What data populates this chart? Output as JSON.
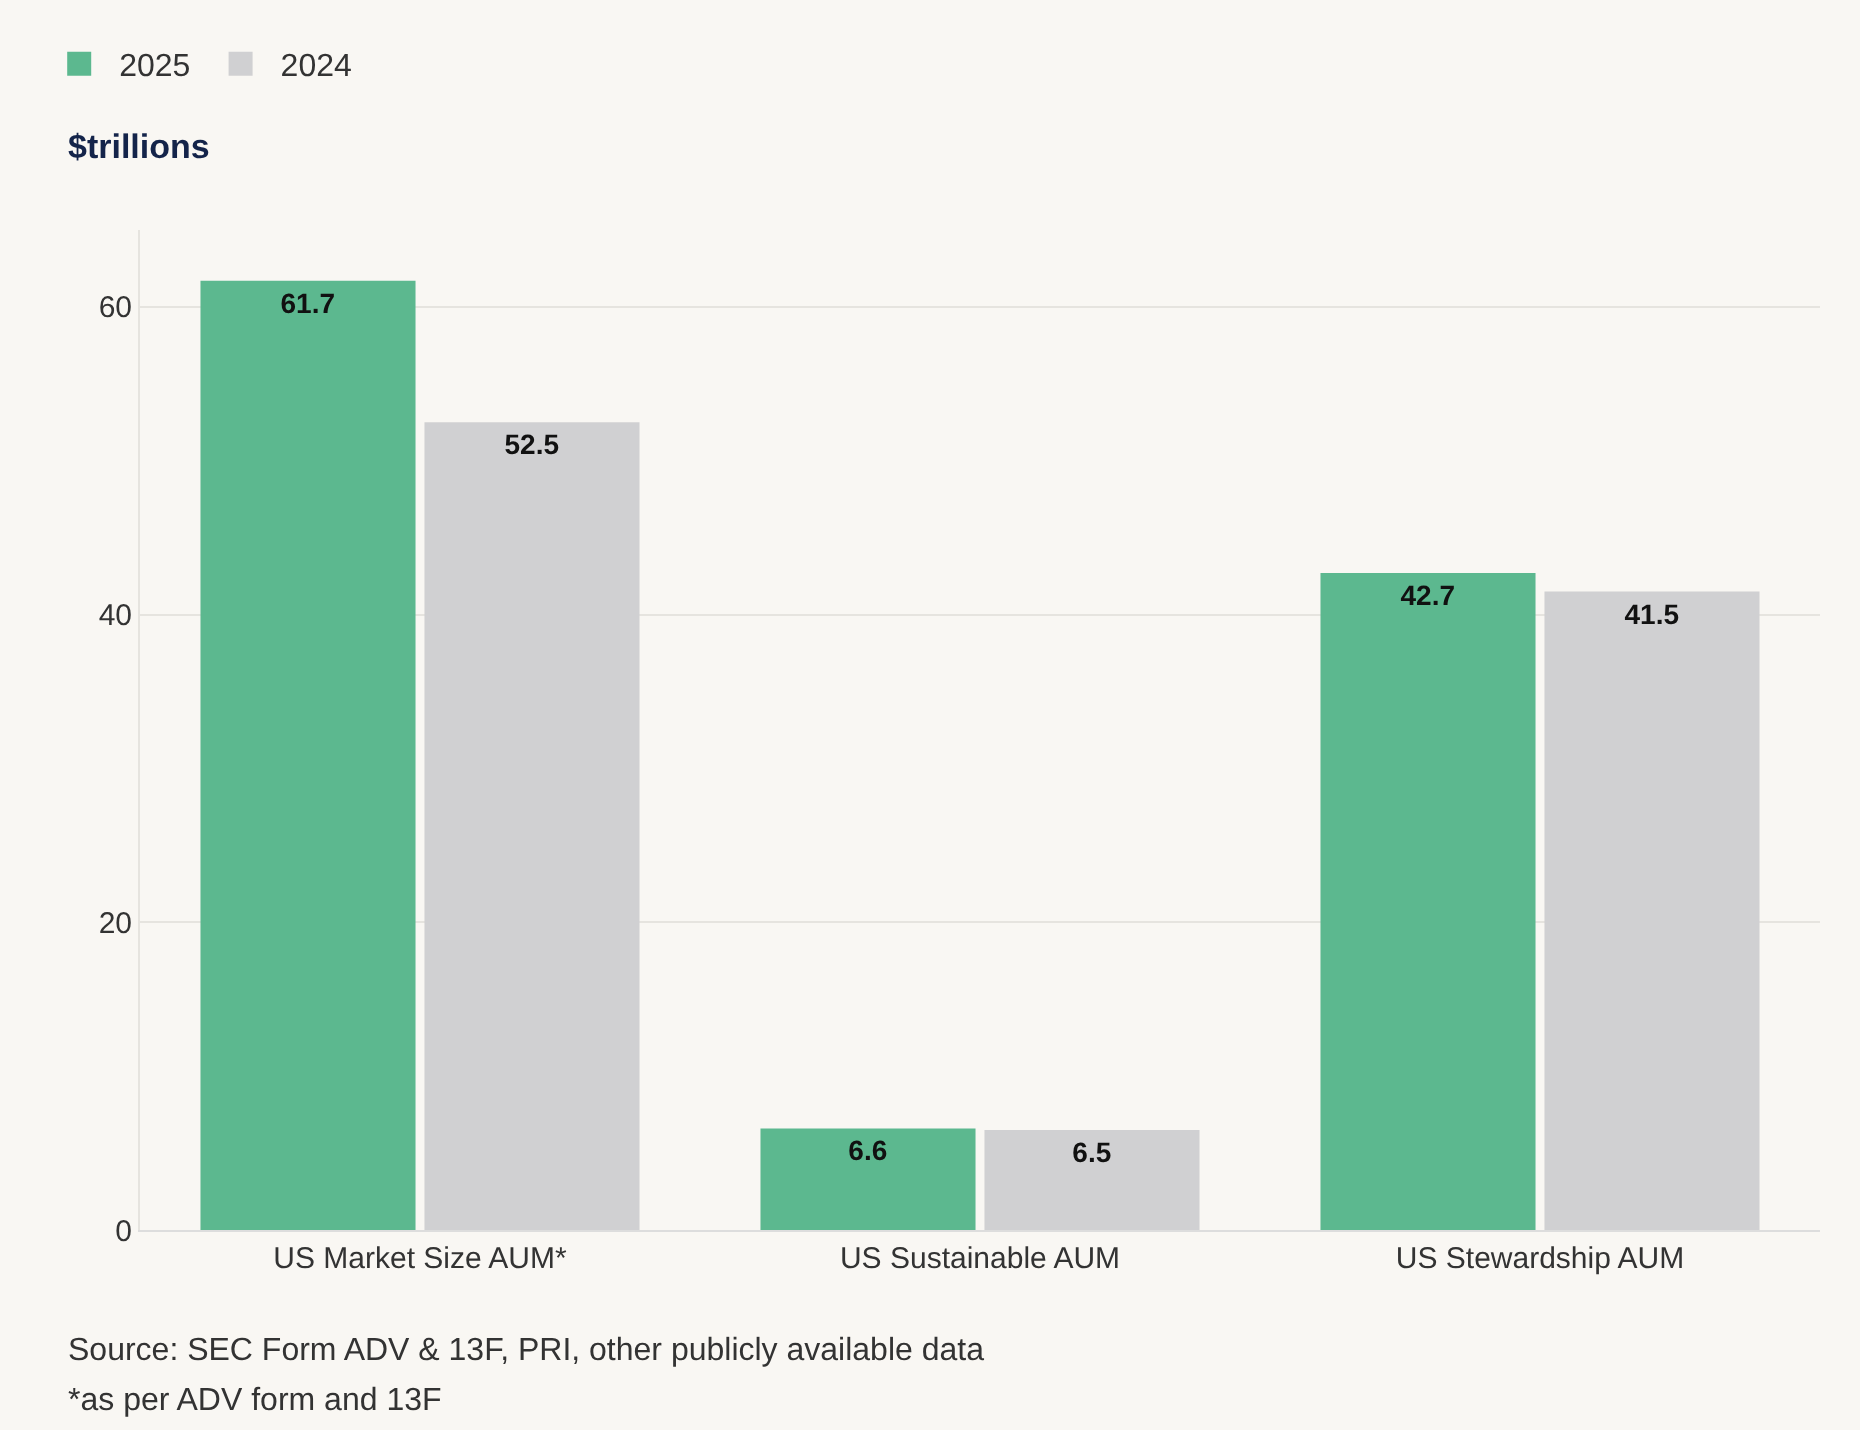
{
  "chart_data": {
    "type": "bar",
    "ylabel": "$trillions",
    "categories": [
      "US Market Size AUM*",
      "US Sustainable AUM",
      "US Stewardship AUM"
    ],
    "series": [
      {
        "name": "2025",
        "color": "#5cb88f",
        "values": [
          61.7,
          6.6,
          42.7
        ]
      },
      {
        "name": "2024",
        "color": "#d0d0d2",
        "values": [
          52.5,
          6.5,
          41.5
        ]
      }
    ],
    "ylim": [
      0,
      65
    ],
    "yticks": [
      0,
      20,
      40,
      60
    ],
    "grid": "y",
    "legend": "top left",
    "data_labels": true,
    "annotations": [
      "Source: SEC Form ADV & 13F, PRI, other publicly available data",
      "*as per ADV form and 13F"
    ]
  }
}
